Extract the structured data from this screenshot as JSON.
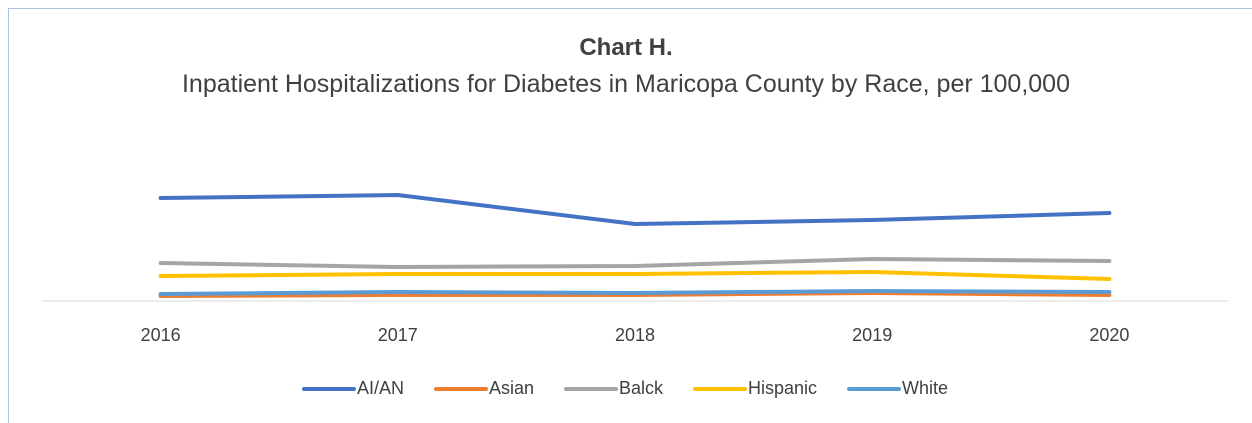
{
  "chart_data": {
    "type": "line",
    "title": "Chart H.",
    "subtitle": "Inpatient Hospitalizations for Diabetes in Maricopa County by Race, per 100,000",
    "categories": [
      "2016",
      "2017",
      "2018",
      "2019",
      "2020"
    ],
    "series": [
      {
        "name": "AI/AN",
        "color": "#4472c4",
        "values": [
          1060,
          1091,
          793,
          834,
          906
        ]
      },
      {
        "name": "Asian",
        "color": "#ed7d31",
        "values": [
          51,
          62,
          62,
          82,
          62
        ]
      },
      {
        "name": "Balck",
        "color": "#a5a5a5",
        "values": [
          391,
          350,
          360,
          432,
          412
        ]
      },
      {
        "name": "Hispanic",
        "color": "#ffc000",
        "values": [
          257,
          278,
          278,
          299,
          226
        ]
      },
      {
        "name": "White",
        "color": "#5b9bd5",
        "values": [
          72,
          93,
          82,
          103,
          93
        ]
      }
    ],
    "ylim": [
      0,
      1400
    ],
    "legend": "bottom"
  }
}
